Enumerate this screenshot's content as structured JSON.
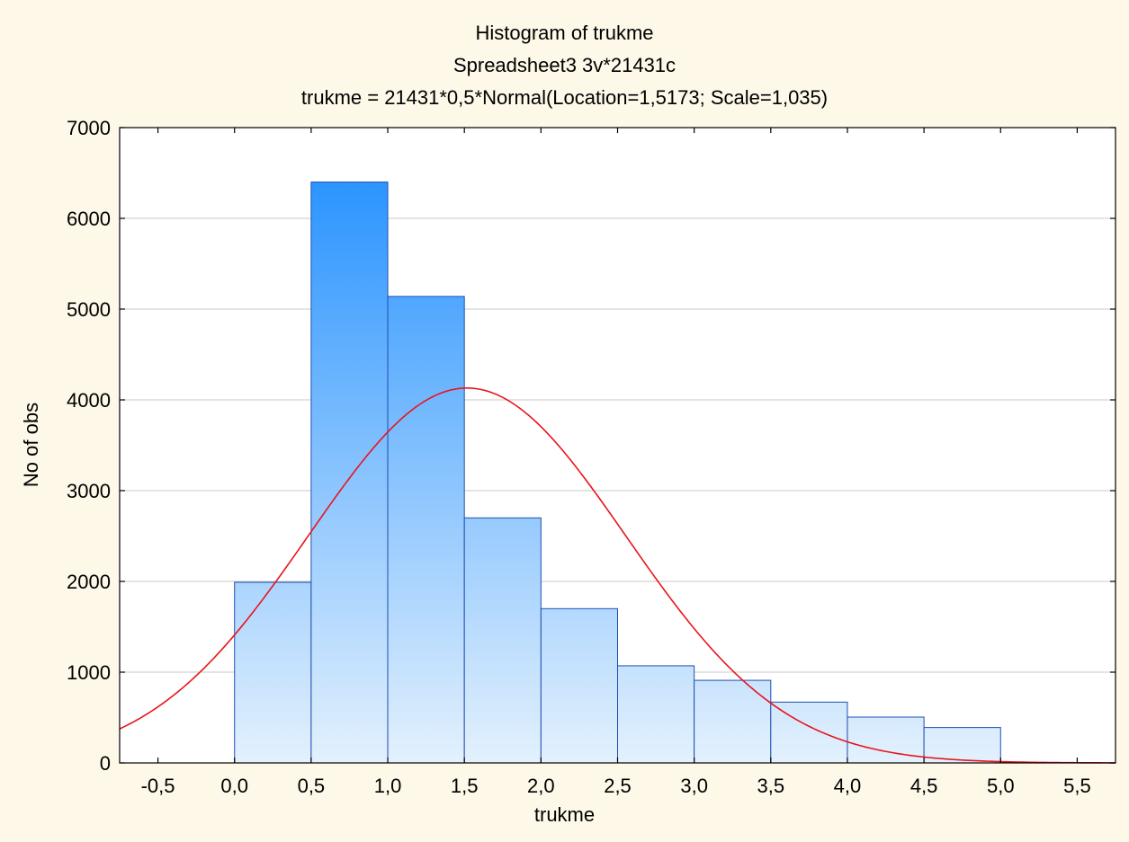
{
  "chart_data": {
    "type": "bar",
    "title": "Histogram of trukme",
    "subtitle": "Spreadsheet3 3v*21431c",
    "formula": "trukme = 21431*0,5*Normal(Location=1,5173; Scale=1,035)",
    "xlabel": "trukme",
    "ylabel": "No of obs",
    "xlim": [
      -0.75,
      5.75
    ],
    "ylim": [
      0,
      7000
    ],
    "x_ticks": [
      -0.5,
      0.0,
      0.5,
      1.0,
      1.5,
      2.0,
      2.5,
      3.0,
      3.5,
      4.0,
      4.5,
      5.0,
      5.5
    ],
    "x_tick_labels": [
      "-0,5",
      "0,0",
      "0,5",
      "1,0",
      "1,5",
      "2,0",
      "2,5",
      "3,0",
      "3,5",
      "4,0",
      "4,5",
      "5,0",
      "5,5"
    ],
    "y_ticks": [
      0,
      1000,
      2000,
      3000,
      4000,
      5000,
      6000,
      7000
    ],
    "y_tick_labels": [
      "0",
      "1000",
      "2000",
      "3000",
      "4000",
      "5000",
      "6000",
      "7000"
    ],
    "grid": "horizontal",
    "bins": [
      {
        "from": 0.0,
        "to": 0.5,
        "count": 1990
      },
      {
        "from": 0.5,
        "to": 1.0,
        "count": 6400
      },
      {
        "from": 1.0,
        "to": 1.5,
        "count": 5140
      },
      {
        "from": 1.5,
        "to": 2.0,
        "count": 2700
      },
      {
        "from": 2.0,
        "to": 2.5,
        "count": 1700
      },
      {
        "from": 2.5,
        "to": 3.0,
        "count": 1070
      },
      {
        "from": 3.0,
        "to": 3.5,
        "count": 910
      },
      {
        "from": 3.5,
        "to": 4.0,
        "count": 670
      },
      {
        "from": 4.0,
        "to": 4.5,
        "count": 505
      },
      {
        "from": 4.5,
        "to": 5.0,
        "count": 390
      }
    ],
    "fit": {
      "distribution": "Normal",
      "n": 21431,
      "bin_width": 0.5,
      "location": 1.5173,
      "scale": 1.035
    },
    "colors": {
      "background": "#fdf8e8",
      "plot_background": "#ffffff",
      "bar_top": "#1a8cff",
      "bar_bottom": "#e4f1fd",
      "bar_edge": "#1f4fb4",
      "fit_line": "#e8141c",
      "grid": "#c8c8c8"
    }
  }
}
